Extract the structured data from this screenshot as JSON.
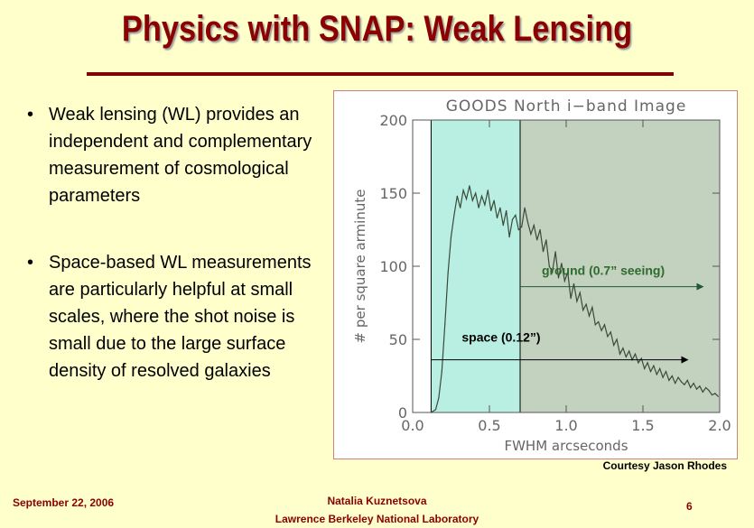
{
  "slide": {
    "title": "Physics with SNAP: Weak Lensing",
    "bullets": [
      "Weak lensing (WL) provides an independent and complementary measurement of cosmological parameters",
      "Space-based WL measurements are particularly helpful at small scales, where the shot noise is small due to the large surface density of resolved galaxies"
    ],
    "bullet_symbol": "•",
    "courtesy": "Courtesy Jason Rhodes",
    "footer": {
      "date": "September 22, 2006",
      "author": "Natalia Kuznetsova",
      "institution": "Lawrence Berkeley National Laboratory",
      "page": "6"
    }
  },
  "colors": {
    "title": "#8b0000",
    "background": "#ffffcc",
    "space_region": "#b9efe2",
    "ground_region": "#c3d1bf",
    "annotation_line": "#1e5a3a",
    "ground_label": "#2e6b2e"
  },
  "chart_data": {
    "type": "line",
    "title": "GOODS North i−band Image",
    "xlabel": "FWHM arcseconds",
    "ylabel": "# per square arminute",
    "xlim": [
      0.0,
      2.0
    ],
    "ylim": [
      0,
      200
    ],
    "xticks": [
      "0.0",
      "0.5",
      "1.0",
      "1.5",
      "2.0"
    ],
    "yticks": [
      "0",
      "50",
      "100",
      "150",
      "200"
    ],
    "grid": false,
    "shaded_regions": [
      {
        "x0": 0.12,
        "x1": 0.7,
        "label": "space"
      },
      {
        "x0": 0.7,
        "x1": 2.0,
        "label": "ground"
      }
    ],
    "annotations": [
      {
        "text": "ground (0.7” seeing)",
        "x_from": 0.7,
        "x_to": 1.85,
        "y": 86
      },
      {
        "text": "space (0.12”)",
        "x_from": 0.12,
        "x_to": 1.75,
        "y": 36
      }
    ],
    "series": [
      {
        "x": [
          0.12,
          0.15,
          0.17,
          0.19,
          0.21,
          0.23,
          0.25,
          0.27,
          0.29,
          0.31,
          0.33,
          0.35,
          0.37,
          0.39,
          0.41,
          0.43,
          0.45,
          0.47,
          0.49,
          0.51,
          0.53,
          0.55,
          0.57,
          0.59,
          0.61,
          0.63,
          0.65,
          0.67,
          0.69,
          0.71,
          0.73,
          0.75,
          0.77,
          0.79,
          0.81,
          0.83,
          0.85,
          0.87,
          0.89,
          0.91,
          0.93,
          0.95,
          0.97,
          0.99,
          1.01,
          1.03,
          1.05,
          1.07,
          1.09,
          1.11,
          1.13,
          1.15,
          1.17,
          1.19,
          1.21,
          1.23,
          1.25,
          1.27,
          1.29,
          1.31,
          1.33,
          1.35,
          1.37,
          1.39,
          1.41,
          1.43,
          1.45,
          1.47,
          1.49,
          1.51,
          1.53,
          1.55,
          1.57,
          1.59,
          1.61,
          1.63,
          1.65,
          1.67,
          1.69,
          1.71,
          1.73,
          1.75,
          1.77,
          1.79,
          1.81,
          1.83,
          1.85,
          1.87,
          1.89,
          1.91,
          1.93,
          1.95,
          1.97,
          1.99
        ],
        "values": [
          0,
          2,
          10,
          28,
          60,
          95,
          120,
          135,
          148,
          140,
          152,
          146,
          155,
          145,
          150,
          140,
          148,
          142,
          152,
          138,
          145,
          133,
          140,
          128,
          138,
          120,
          132,
          135,
          125,
          127,
          140,
          130,
          122,
          128,
          118,
          125,
          110,
          118,
          100,
          96,
          110,
          92,
          102,
          90,
          96,
          78,
          88,
          76,
          82,
          70,
          74,
          66,
          72,
          60,
          62,
          56,
          60,
          52,
          55,
          46,
          50,
          40,
          44,
          38,
          42,
          36,
          40,
          34,
          37,
          30,
          34,
          28,
          32,
          26,
          30,
          24,
          28,
          22,
          25,
          20,
          24,
          21,
          19,
          22,
          17,
          20,
          16,
          18,
          14,
          17,
          15,
          12,
          13,
          11
        ]
      }
    ]
  }
}
